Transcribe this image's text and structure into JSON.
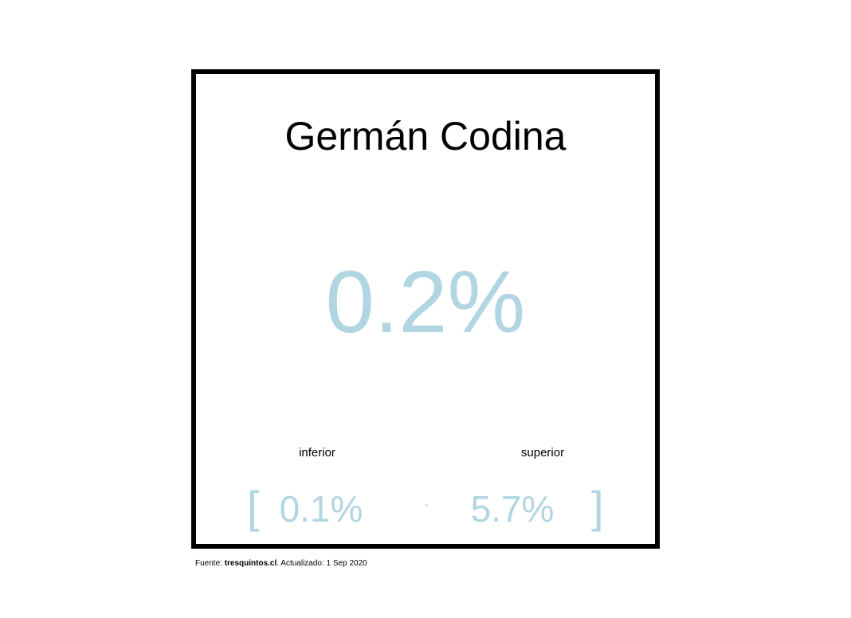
{
  "chart_data": {
    "type": "table",
    "title": "Germán Codina",
    "estimate": "0.2%",
    "lower_label": "inferior",
    "upper_label": "superior",
    "lower_value": "0.1%",
    "upper_value": "5.7%",
    "open_bracket": "[",
    "close_bracket": "]",
    "separator": "-",
    "estimate_color": "#b2d5e2"
  },
  "footer": {
    "source_prefix": "Fuente: ",
    "source_name": "tresquintos.cl",
    "updated_text": ". Actualizado: 1 Sep 2020"
  }
}
